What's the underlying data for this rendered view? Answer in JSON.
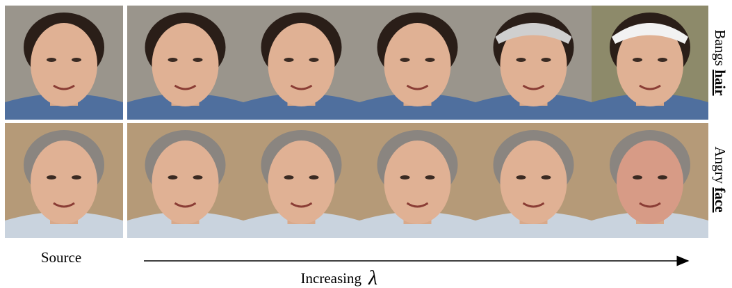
{
  "labels": {
    "source": "Source",
    "axis": "Increasing",
    "symbol": "λ"
  },
  "rows": [
    {
      "attribute": "Bangs",
      "region": "hair"
    },
    {
      "attribute": "Angry",
      "region": "face"
    }
  ]
}
